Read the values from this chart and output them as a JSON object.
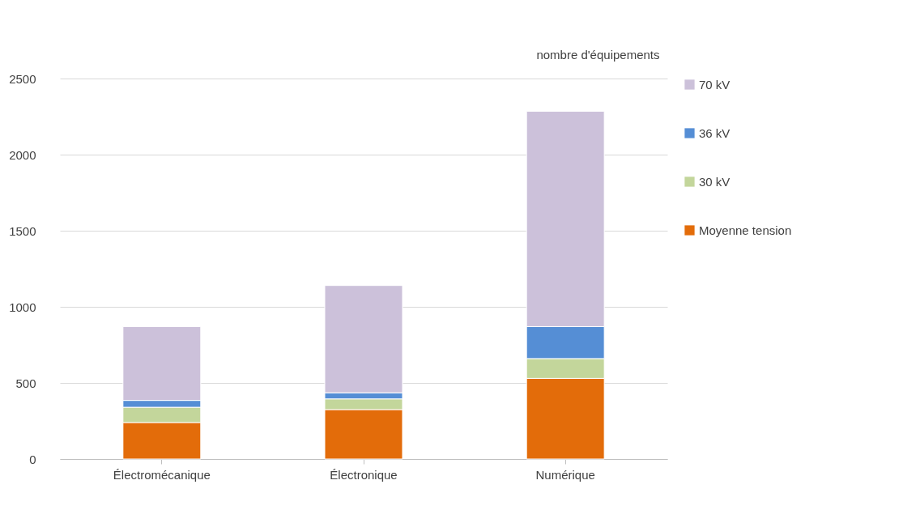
{
  "chart_data": {
    "type": "bar",
    "stacked": true,
    "ylabel": "nombre d'équipements",
    "categories": [
      "Électromécanique",
      "Électronique",
      "Numérique"
    ],
    "series": [
      {
        "name": "Moyenne tension",
        "color": "#e36c0a",
        "values": [
          240,
          325,
          530
        ]
      },
      {
        "name": "30 kV",
        "color": "#c3d69b",
        "values": [
          100,
          70,
          130
        ]
      },
      {
        "name": "36 kV",
        "color": "#558ed5",
        "values": [
          45,
          40,
          210
        ]
      },
      {
        "name": "70 kV",
        "color": "#ccc1da",
        "values": [
          485,
          705,
          1415
        ]
      }
    ],
    "ylim": [
      0,
      2500
    ],
    "yticks": [
      0,
      500,
      1000,
      1500,
      2000,
      2500
    ],
    "grid": "y",
    "legend": "right"
  }
}
